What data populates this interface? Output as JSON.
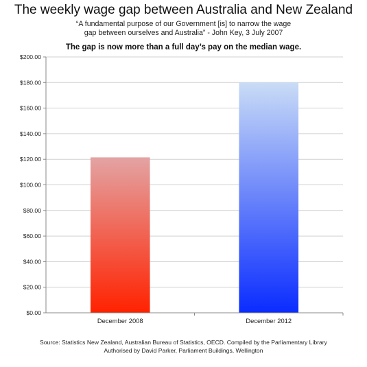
{
  "header": {
    "title": "The weekly wage gap between Australia and New Zealand",
    "quote_line1": "“A fundamental purpose of our Government [is] to narrow the wage",
    "quote_line2": "gap between ourselves and Australia” - John Key, 3 July 2007",
    "subtitle": "The gap is now more than a full day’s pay on the median wage."
  },
  "chart_data": {
    "type": "bar",
    "title": "The weekly wage gap between Australia and New Zealand",
    "subtitle": "The gap is now more than a full day’s pay on the median wage.",
    "xlabel": "",
    "ylabel": "",
    "categories": [
      "December 2008",
      "December 2012"
    ],
    "values": [
      121.5,
      180
    ],
    "ylim": [
      0,
      200
    ],
    "yticks": [
      0,
      20,
      40,
      60,
      80,
      100,
      120,
      140,
      160,
      180,
      200
    ],
    "ytick_labels": [
      "$0.00",
      "$20.00",
      "$40.00",
      "$60.00",
      "$80.00",
      "$100.00",
      "$120.00",
      "$140.00",
      "$160.00",
      "$180.00",
      "$200.00"
    ],
    "grid": true,
    "legend": "none",
    "bar_gradients": [
      {
        "top": "#e3a3a3",
        "bottom": "#ff2200"
      },
      {
        "top": "#c9dcf6",
        "bottom": "#0a2cff"
      }
    ],
    "grid_color": "#d0d0d0",
    "axis_color": "#888888"
  },
  "footer": {
    "source_line1": "Source: Statistics New Zealand, Australian Bureau of Statistics, OECD. Compiled by the Parliamentary Library",
    "source_line2": "Authorised by David Parker, Parliament Buildings, Wellington"
  }
}
